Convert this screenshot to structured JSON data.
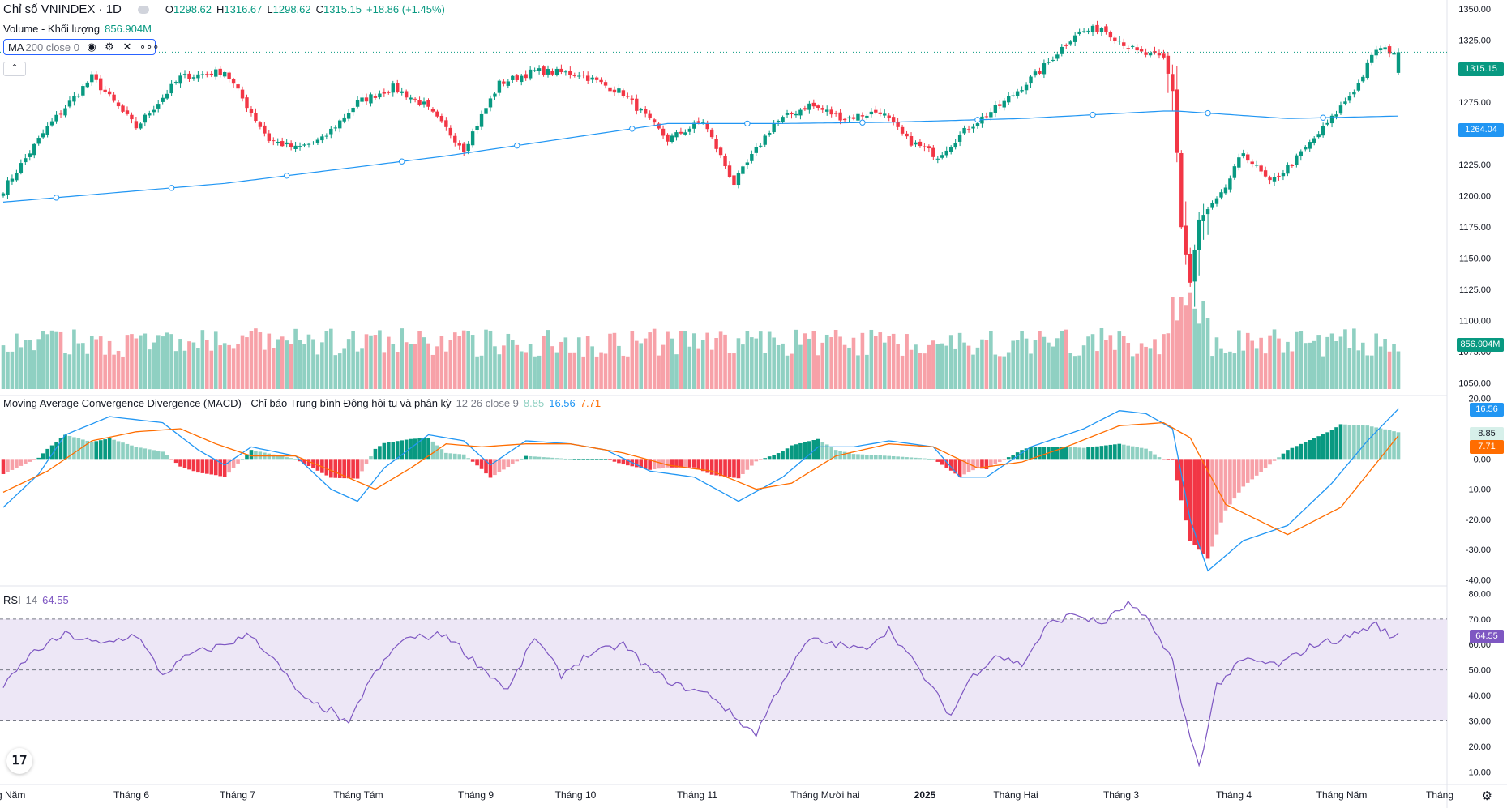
{
  "header": {
    "title": "Chỉ số VNINDEX · 1D",
    "ohlc": [
      {
        "label": "O",
        "value": "1298.62"
      },
      {
        "label": "H",
        "value": "1316.67"
      },
      {
        "label": "L",
        "value": "1298.62"
      },
      {
        "label": "C",
        "value": "1315.15"
      }
    ],
    "change": "+18.86 (+1.45%)"
  },
  "volume_legend": {
    "label": "Volume - Khối lượng",
    "value": "856.904M"
  },
  "ma_legend": {
    "label": "MA",
    "params": "200 close 0"
  },
  "macd_legend": {
    "label": "Moving Average Convergence Divergence (MACD) - Chỉ báo Trung bình Động hội tụ và phân kỳ",
    "params": "12 26 close 9",
    "hist": "8.85",
    "macd": "16.56",
    "signal": "7.71"
  },
  "rsi_legend": {
    "label": "RSI",
    "params": "14",
    "value": "64.55"
  },
  "price_tags": {
    "last": "1315.15",
    "ma": "1264.04",
    "volume": "856.904M",
    "macd": "16.56",
    "hist": "8.85",
    "signal": "7.71",
    "rsi": "64.55"
  },
  "colors": {
    "up": "#089981",
    "down": "#f23645",
    "vol_up": "#8fd0c2",
    "vol_down": "#f7a1a8",
    "ma": "#2196f3",
    "macd": "#2196f3",
    "signal": "#ff6d00",
    "rsi": "#7e57c2",
    "rsi_band": "#ede7f6"
  },
  "chart_data": [
    {
      "type": "candlestick",
      "title": "Chỉ số VNINDEX · 1D",
      "yticks": [
        "1050.00",
        "1075.00",
        "1100.00",
        "1125.00",
        "1150.00",
        "1175.00",
        "1200.00",
        "1225.00",
        "1250.00",
        "1275.00",
        "1300.00",
        "1325.00",
        "1350.00"
      ],
      "ylim": [
        1040,
        1357
      ],
      "xticks": [
        "Tháng Năm",
        "Tháng 6",
        "Tháng 7",
        "Tháng Tám",
        "Tháng 9",
        "Tháng 10",
        "Tháng 11",
        "Tháng Mười hai",
        "2025",
        "Tháng Hai",
        "Tháng 3",
        "Tháng 4",
        "Tháng Năm",
        "Tháng"
      ],
      "close_anchors": [
        [
          0,
          1205
        ],
        [
          10,
          1255
        ],
        [
          20,
          1295
        ],
        [
          30,
          1255
        ],
        [
          40,
          1295
        ],
        [
          50,
          1300
        ],
        [
          60,
          1245
        ],
        [
          66,
          1238
        ],
        [
          72,
          1245
        ],
        [
          80,
          1275
        ],
        [
          88,
          1287
        ],
        [
          95,
          1273
        ],
        [
          104,
          1238
        ],
        [
          112,
          1290
        ],
        [
          120,
          1300
        ],
        [
          130,
          1298
        ],
        [
          140,
          1282
        ],
        [
          150,
          1245
        ],
        [
          158,
          1260
        ],
        [
          165,
          1210
        ],
        [
          174,
          1258
        ],
        [
          182,
          1273
        ],
        [
          190,
          1262
        ],
        [
          198,
          1268
        ],
        [
          204,
          1245
        ],
        [
          211,
          1232
        ],
        [
          218,
          1255
        ],
        [
          226,
          1275
        ],
        [
          234,
          1300
        ],
        [
          242,
          1330
        ],
        [
          248,
          1335
        ],
        [
          256,
          1315
        ],
        [
          262,
          1310
        ],
        [
          264,
          1285
        ],
        [
          265,
          1235
        ],
        [
          266,
          1175
        ],
        [
          268,
          1130
        ],
        [
          270,
          1180
        ],
        [
          275,
          1200
        ],
        [
          280,
          1235
        ],
        [
          286,
          1210
        ],
        [
          292,
          1230
        ],
        [
          300,
          1262
        ],
        [
          306,
          1290
        ],
        [
          310,
          1318
        ],
        [
          315,
          1315
        ]
      ],
      "volume_base": [
        0,
        2
      ],
      "ma200": [
        [
          0,
          1195
        ],
        [
          50,
          1210
        ],
        [
          100,
          1232
        ],
        [
          150,
          1258
        ],
        [
          175,
          1258
        ],
        [
          200,
          1259
        ],
        [
          230,
          1262
        ],
        [
          262,
          1268
        ],
        [
          265,
          1268
        ],
        [
          290,
          1262
        ],
        [
          315,
          1264
        ]
      ],
      "last": 1315.15,
      "ma_last": 1264.04
    },
    {
      "type": "bar",
      "title": "Volume - Khối lượng",
      "last": "856.904M"
    },
    {
      "type": "line",
      "title": "MACD",
      "yticks": [
        "20.00",
        "0.00",
        "-10.00",
        "-20.00",
        "-30.00",
        "-40.00"
      ],
      "ylim": [
        -42,
        21
      ],
      "macd_anchors": [
        [
          0,
          -16
        ],
        [
          8,
          -5
        ],
        [
          14,
          8
        ],
        [
          24,
          14
        ],
        [
          36,
          12
        ],
        [
          44,
          3
        ],
        [
          50,
          -2
        ],
        [
          56,
          4
        ],
        [
          66,
          1
        ],
        [
          74,
          -10
        ],
        [
          80,
          -14
        ],
        [
          86,
          -3
        ],
        [
          96,
          8
        ],
        [
          104,
          6
        ],
        [
          110,
          -2
        ],
        [
          118,
          6
        ],
        [
          128,
          5
        ],
        [
          136,
          3
        ],
        [
          146,
          -4
        ],
        [
          156,
          -6
        ],
        [
          166,
          -14
        ],
        [
          176,
          -6
        ],
        [
          184,
          4
        ],
        [
          192,
          4
        ],
        [
          200,
          6
        ],
        [
          210,
          4
        ],
        [
          216,
          -6
        ],
        [
          222,
          -6
        ],
        [
          232,
          4
        ],
        [
          244,
          10
        ],
        [
          252,
          16
        ],
        [
          258,
          15
        ],
        [
          264,
          10
        ],
        [
          268,
          -20
        ],
        [
          272,
          -37
        ],
        [
          280,
          -27
        ],
        [
          290,
          -22
        ],
        [
          300,
          -8
        ],
        [
          308,
          6
        ],
        [
          315,
          16.56
        ]
      ],
      "signal_anchors": [
        [
          0,
          -11
        ],
        [
          10,
          -4
        ],
        [
          20,
          6
        ],
        [
          30,
          9
        ],
        [
          40,
          10
        ],
        [
          48,
          5
        ],
        [
          56,
          1
        ],
        [
          66,
          1
        ],
        [
          76,
          -5
        ],
        [
          84,
          -10
        ],
        [
          92,
          -3
        ],
        [
          100,
          5
        ],
        [
          108,
          4
        ],
        [
          118,
          5
        ],
        [
          128,
          5
        ],
        [
          140,
          2
        ],
        [
          150,
          -2
        ],
        [
          160,
          -4
        ],
        [
          170,
          -10
        ],
        [
          178,
          -8
        ],
        [
          188,
          1
        ],
        [
          200,
          5
        ],
        [
          210,
          4
        ],
        [
          220,
          -3
        ],
        [
          230,
          -1
        ],
        [
          240,
          4
        ],
        [
          252,
          11
        ],
        [
          262,
          12
        ],
        [
          268,
          7
        ],
        [
          276,
          -15
        ],
        [
          290,
          -25
        ],
        [
          302,
          -16
        ],
        [
          315,
          7.71
        ]
      ],
      "hist_last": 8.85,
      "macd_last": 16.56,
      "signal_last": 7.71
    },
    {
      "type": "line",
      "title": "RSI 14",
      "yticks": [
        "80.00",
        "70.00",
        "60.00",
        "50.00",
        "40.00",
        "30.00",
        "20.00",
        "10.00"
      ],
      "ylim": [
        5,
        83
      ],
      "band": [
        30,
        70
      ],
      "mid": 50,
      "rsi_anchors": [
        [
          0,
          43
        ],
        [
          6,
          56
        ],
        [
          14,
          64
        ],
        [
          22,
          60
        ],
        [
          30,
          64
        ],
        [
          36,
          48
        ],
        [
          42,
          56
        ],
        [
          50,
          60
        ],
        [
          56,
          64
        ],
        [
          62,
          52
        ],
        [
          68,
          38
        ],
        [
          74,
          34
        ],
        [
          78,
          28
        ],
        [
          82,
          44
        ],
        [
          90,
          62
        ],
        [
          100,
          64
        ],
        [
          106,
          54
        ],
        [
          114,
          42
        ],
        [
          120,
          63
        ],
        [
          126,
          48
        ],
        [
          132,
          56
        ],
        [
          140,
          60
        ],
        [
          146,
          50
        ],
        [
          152,
          44
        ],
        [
          160,
          40
        ],
        [
          166,
          30
        ],
        [
          170,
          25
        ],
        [
          176,
          46
        ],
        [
          182,
          62
        ],
        [
          188,
          60
        ],
        [
          194,
          58
        ],
        [
          200,
          66
        ],
        [
          206,
          52
        ],
        [
          210,
          42
        ],
        [
          214,
          32
        ],
        [
          218,
          46
        ],
        [
          224,
          56
        ],
        [
          230,
          52
        ],
        [
          236,
          68
        ],
        [
          242,
          72
        ],
        [
          248,
          68
        ],
        [
          254,
          76
        ],
        [
          258,
          70
        ],
        [
          262,
          60
        ],
        [
          264,
          54
        ],
        [
          266,
          36
        ],
        [
          270,
          12
        ],
        [
          274,
          44
        ],
        [
          280,
          54
        ],
        [
          288,
          52
        ],
        [
          296,
          60
        ],
        [
          302,
          62
        ],
        [
          310,
          68
        ],
        [
          314,
          62
        ],
        [
          315,
          64.55
        ]
      ],
      "last": 64.55
    }
  ]
}
